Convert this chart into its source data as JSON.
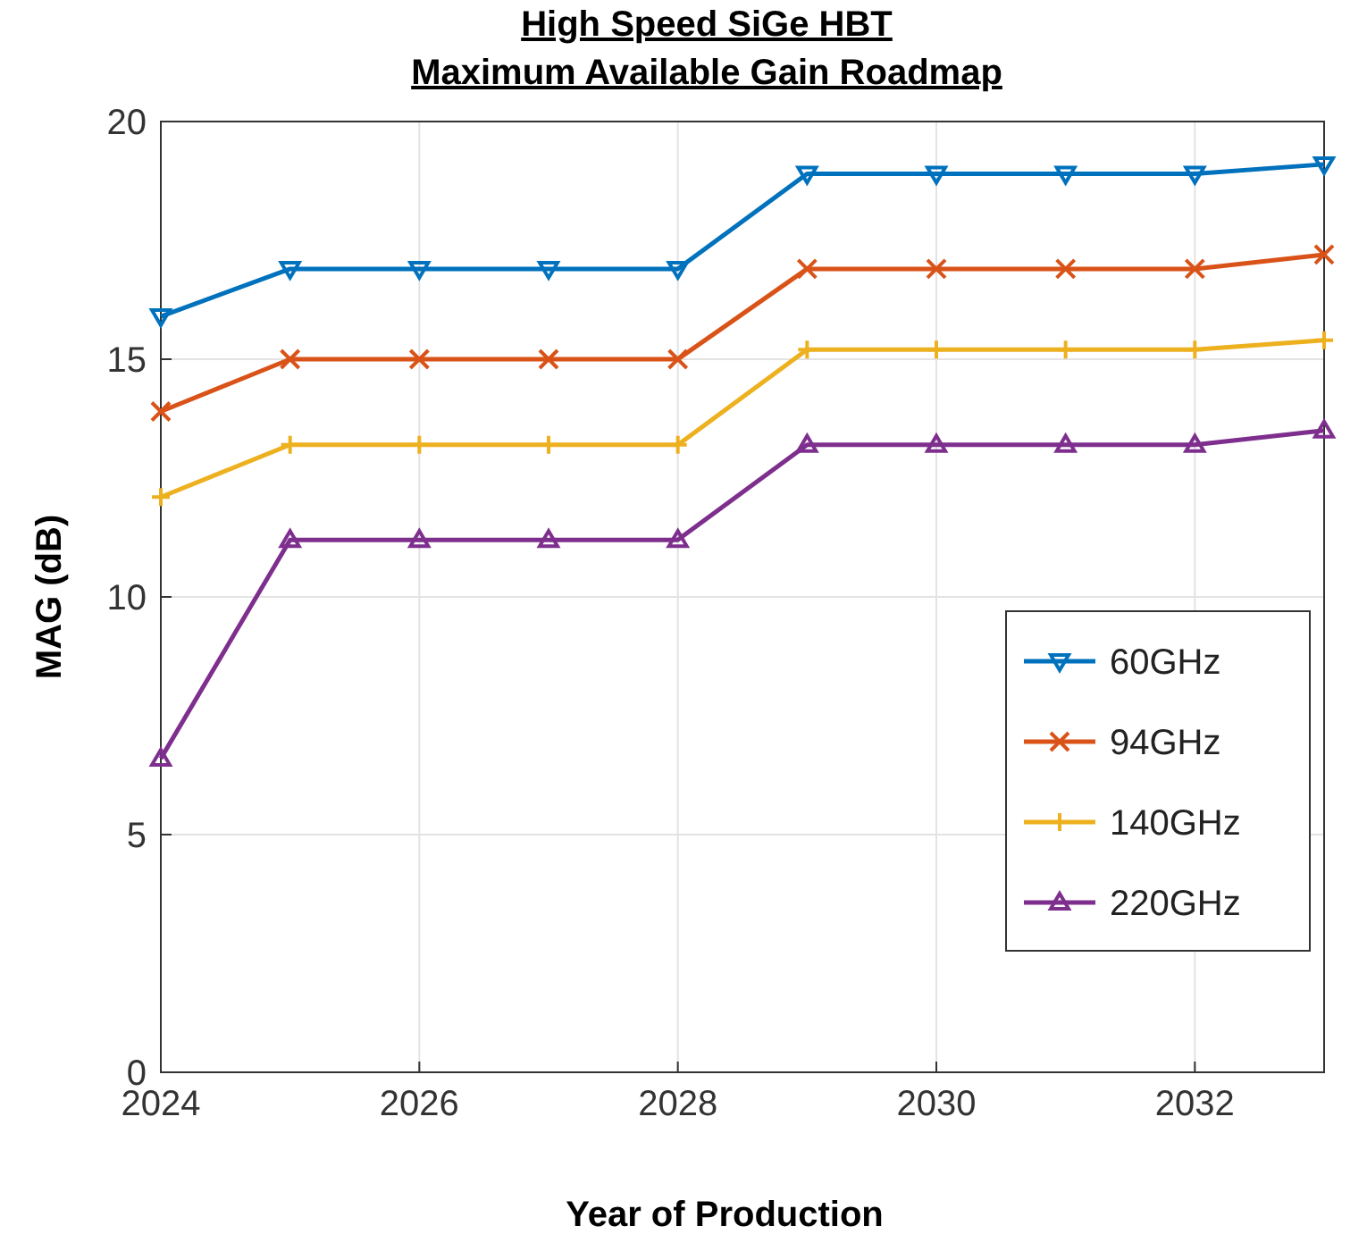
{
  "chart_data": {
    "type": "line",
    "title": "High Speed SiGe HBT",
    "subtitle": "Maximum Available Gain Roadmap",
    "xlabel": "Year of Production",
    "ylabel": "MAG (dB)",
    "x": [
      2024,
      2025,
      2026,
      2027,
      2028,
      2029,
      2030,
      2031,
      2032,
      2033
    ],
    "series": [
      {
        "name": "60GHz",
        "color": "#0072bd",
        "marker": "triangle-down",
        "values": [
          15.9,
          16.9,
          16.9,
          16.9,
          16.9,
          18.9,
          18.9,
          18.9,
          18.9,
          19.1
        ]
      },
      {
        "name": "94GHz",
        "color": "#d95319",
        "marker": "x",
        "values": [
          13.9,
          15.0,
          15.0,
          15.0,
          15.0,
          16.9,
          16.9,
          16.9,
          16.9,
          17.2
        ]
      },
      {
        "name": "140GHz",
        "color": "#edb120",
        "marker": "plus",
        "values": [
          12.1,
          13.2,
          13.2,
          13.2,
          13.2,
          15.2,
          15.2,
          15.2,
          15.2,
          15.4
        ]
      },
      {
        "name": "220GHz",
        "color": "#7e2f8e",
        "marker": "triangle",
        "values": [
          6.6,
          11.2,
          11.2,
          11.2,
          11.2,
          13.2,
          13.2,
          13.2,
          13.2,
          13.5
        ]
      }
    ],
    "xlim": [
      2024,
      2033
    ],
    "xticks": [
      2024,
      2026,
      2028,
      2030,
      2032
    ],
    "ylim": [
      0,
      20
    ],
    "yticks": [
      0,
      5,
      10,
      15,
      20
    ],
    "grid": true,
    "legend": "right",
    "line_style": "solid"
  }
}
